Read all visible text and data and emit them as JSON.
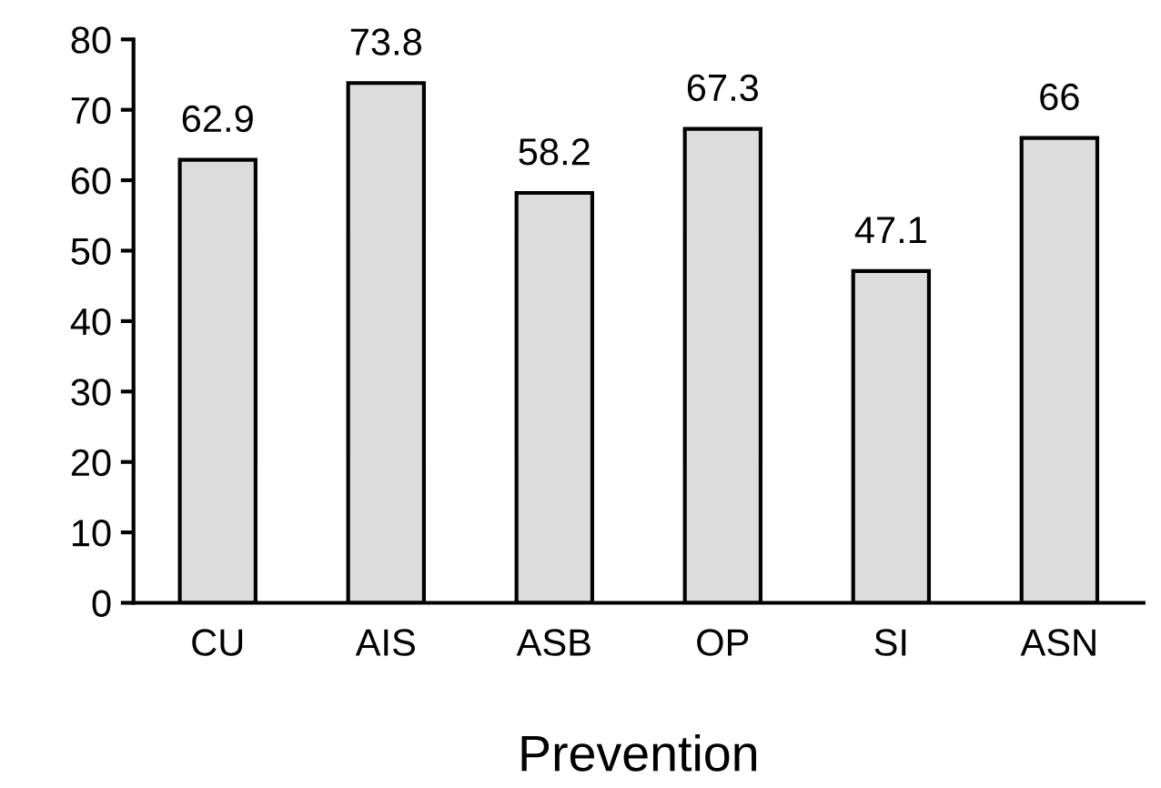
{
  "chart_data": {
    "type": "bar",
    "xlabel": "Prevention",
    "categories": [
      "CU",
      "AIS",
      "ASB",
      "OP",
      "SI",
      "ASN"
    ],
    "values": [
      62.9,
      73.8,
      58.2,
      67.3,
      47.1,
      66
    ],
    "color": "#dcdcdc",
    "ylim": [
      0,
      80
    ],
    "yticks": [
      0,
      10,
      20,
      30,
      40,
      50,
      60,
      70,
      80
    ],
    "data_labels": true,
    "grid": false,
    "legend": false
  }
}
